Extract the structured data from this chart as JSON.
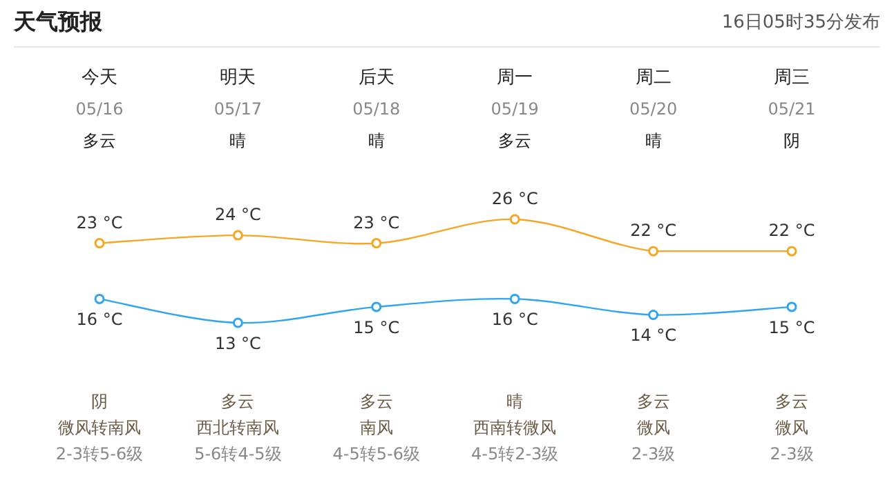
{
  "chart_data": {
    "type": "line",
    "title": "天气预报",
    "subtitle": "16日05时35分发布",
    "categories": [
      "今天",
      "明天",
      "后天",
      "周一",
      "周二",
      "周三"
    ],
    "series": [
      {
        "color": "#f5a623",
        "values": [
          23,
          24,
          23,
          26,
          22,
          22
        ],
        "value_labels": [
          "23 °C",
          "24 °C",
          "23 °C",
          "26 °C",
          "22 °C",
          "22 °C"
        ]
      },
      {
        "color": "#2fa5f0",
        "values": [
          16,
          13,
          15,
          16,
          14,
          15
        ],
        "value_labels": [
          "16 °C",
          "13 °C",
          "15 °C",
          "16 °C",
          "14 °C",
          "15 °C"
        ]
      }
    ],
    "marker": "circle",
    "annotations": [
      "05/16",
      "05/17",
      "05/18",
      "05/19",
      "05/20",
      "05/21",
      "多云",
      "晴",
      "晴",
      "多云",
      "晴",
      "阴",
      "阴",
      "多云",
      "多云",
      "晴",
      "多云",
      "多云",
      "微风转南风",
      "西北转南风",
      "南风",
      "西南转微风",
      "微风",
      "微风",
      "2-3转5-6级",
      "5-6转4-5级",
      "4-5转5-6级",
      "4-5转2-3级",
      "2-3级",
      "2-3级"
    ]
  }
}
